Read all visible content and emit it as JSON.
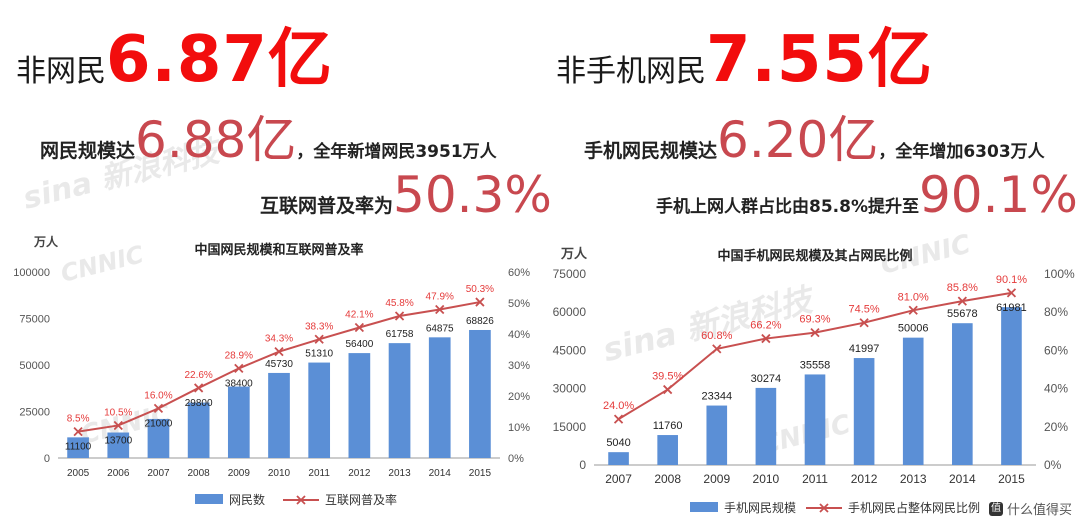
{
  "left": {
    "headline": {
      "label": "非网民",
      "value": "6.87亿"
    },
    "stats": [
      {
        "label": "网民规模达",
        "value": "6.88亿",
        "tail": "，全年新增网民3951万人"
      },
      {
        "label": "互联网普及率为",
        "value": "50.3%",
        "tail": ""
      }
    ]
  },
  "right": {
    "headline": {
      "label": "非手机网民",
      "value": "7.55亿"
    },
    "stats": [
      {
        "label": "手机网民规模达",
        "value": "6.20亿",
        "tail": "，全年增加6303万人"
      },
      {
        "label": "手机上网人群占比由85.8%提升至",
        "value": "90.1%",
        "tail": ""
      }
    ]
  },
  "watermarks": [
    "sina 新浪科技",
    "CNNIC"
  ],
  "footer": {
    "badge": "值",
    "text": "什么值得买"
  },
  "colors": {
    "bar": "#5b8fd6",
    "line": "#c85050",
    "label_red": "#e53b3b",
    "headline_red": "#f20d0d"
  },
  "chart_data": [
    {
      "type": "bar",
      "title": "中国网民规模和互联网普及率",
      "ylabel": "万人",
      "categories": [
        "2005",
        "2006",
        "2007",
        "2008",
        "2009",
        "2010",
        "2011",
        "2012",
        "2013",
        "2014",
        "2015"
      ],
      "series": [
        {
          "name": "网民数",
          "type": "bar",
          "axis": "left",
          "values": [
            11100,
            13700,
            21000,
            29800,
            38400,
            45730,
            51310,
            56400,
            61758,
            64875,
            68826
          ],
          "labels": [
            "11100",
            "13700",
            "21000",
            "29800",
            "38400",
            "45730",
            "51310",
            "56400",
            "61758",
            "64875",
            "68826"
          ]
        },
        {
          "name": "互联网普及率",
          "type": "line",
          "axis": "right",
          "values": [
            8.5,
            10.5,
            16.0,
            22.6,
            28.9,
            34.3,
            38.3,
            42.1,
            45.8,
            47.9,
            50.3
          ],
          "labels": [
            "8.5%",
            "10.5%",
            "16.0%",
            "22.6%",
            "28.9%",
            "34.3%",
            "38.3%",
            "42.1%",
            "45.8%",
            "47.9%",
            "50.3%"
          ]
        }
      ],
      "ylim": [
        0,
        100000
      ],
      "y_ticks": [
        0,
        25000,
        50000,
        75000,
        100000
      ],
      "y_tick_labels": [
        "0",
        "25000",
        "50000",
        "75000",
        "100000"
      ],
      "y2lim": [
        0,
        60
      ],
      "y2_ticks": [
        0,
        10,
        20,
        30,
        40,
        50,
        60
      ],
      "y2_tick_labels": [
        "0%",
        "10%",
        "20%",
        "30%",
        "40%",
        "50%",
        "60%"
      ],
      "legend": "bottom",
      "grid": false
    },
    {
      "type": "bar",
      "title": "中国手机网民规模及其占网民比例",
      "ylabel": "万人",
      "categories": [
        "2007",
        "2008",
        "2009",
        "2010",
        "2011",
        "2012",
        "2013",
        "2014",
        "2015"
      ],
      "series": [
        {
          "name": "手机网民规模",
          "type": "bar",
          "axis": "left",
          "values": [
            5040,
            11760,
            23344,
            30274,
            35558,
            41997,
            50006,
            55678,
            61981
          ],
          "labels": [
            "5040",
            "11760",
            "23344",
            "30274",
            "35558",
            "41997",
            "50006",
            "55678",
            "61981"
          ]
        },
        {
          "name": "手机网民占整体网民比例",
          "type": "line",
          "axis": "right",
          "values": [
            24.0,
            39.5,
            60.8,
            66.2,
            69.3,
            74.5,
            81.0,
            85.8,
            90.1
          ],
          "labels": [
            "24.0%",
            "39.5%",
            "60.8%",
            "66.2%",
            "69.3%",
            "74.5%",
            "81.0%",
            "85.8%",
            "90.1%"
          ]
        }
      ],
      "ylim": [
        0,
        75000
      ],
      "y_ticks": [
        0,
        15000,
        30000,
        45000,
        60000,
        75000
      ],
      "y_tick_labels": [
        "0",
        "15000",
        "30000",
        "45000",
        "60000",
        "75000"
      ],
      "y2lim": [
        0,
        100
      ],
      "y2_ticks": [
        0,
        20,
        40,
        60,
        80,
        100
      ],
      "y2_tick_labels": [
        "0%",
        "20%",
        "40%",
        "60%",
        "80%",
        "100%"
      ],
      "legend": "bottom",
      "grid": false
    }
  ]
}
